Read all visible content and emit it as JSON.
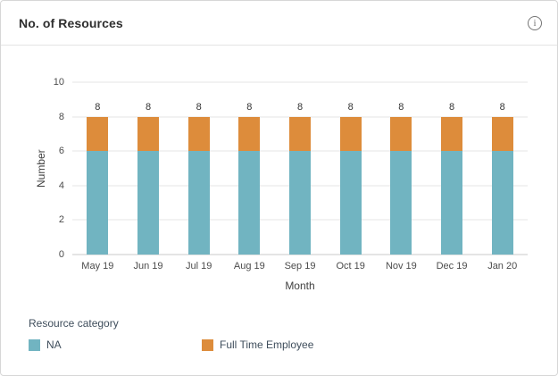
{
  "icons": {
    "info": "i"
  },
  "colors": {
    "grid": "#e6e6e6",
    "axis_baseline": "#c9c9c9",
    "tick_text": "#4c4c4c",
    "title_text": "#2e2e2e",
    "legend_text": "#3f4e5c"
  },
  "chart_data": {
    "type": "bar",
    "stacked": true,
    "title": "No. of Resources",
    "xlabel": "Month",
    "ylabel": "Number",
    "categories": [
      "May 19",
      "Jun 19",
      "Jul 19",
      "Aug 19",
      "Sep 19",
      "Oct 19",
      "Nov 19",
      "Dec 19",
      "Jan 20"
    ],
    "series": [
      {
        "name": "NA",
        "color": "#71B4C1",
        "values": [
          6,
          6,
          6,
          6,
          6,
          6,
          6,
          6,
          6
        ]
      },
      {
        "name": "Full Time Employee",
        "color": "#DD8C3B",
        "values": [
          2,
          2,
          2,
          2,
          2,
          2,
          2,
          2,
          2
        ]
      }
    ],
    "totals": [
      8,
      8,
      8,
      8,
      8,
      8,
      8,
      8,
      8
    ],
    "ylim": [
      0,
      10
    ],
    "yticks": [
      0,
      2,
      4,
      6,
      8,
      10
    ],
    "grid": true,
    "bar_value_labels": true,
    "legend_title": "Resource category",
    "legend_position": "bottom-left"
  }
}
